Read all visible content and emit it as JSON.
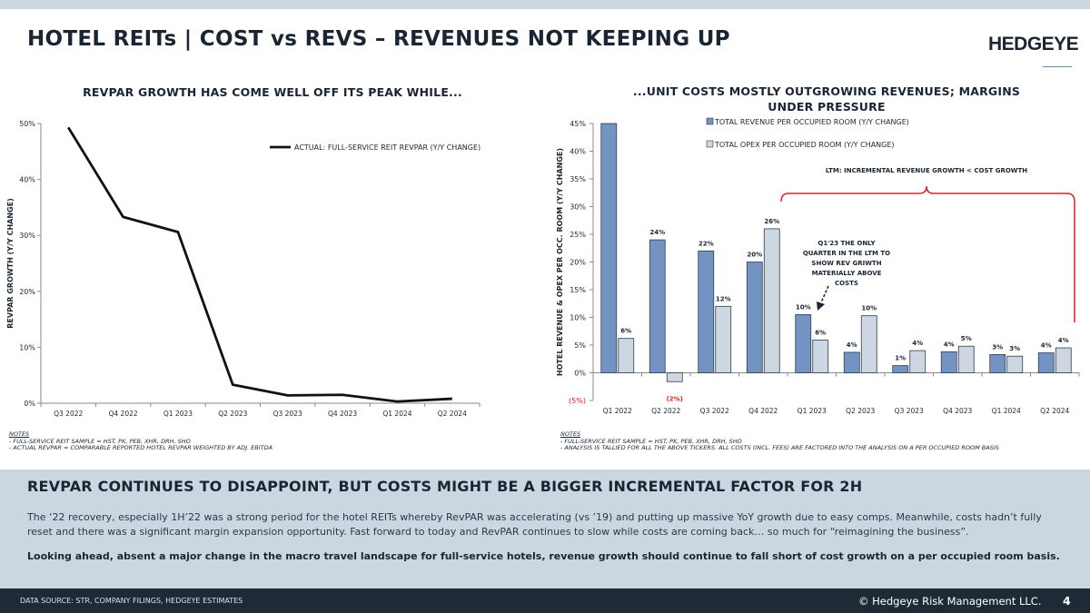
{
  "title": "HOTEL REITs | COST vs REVS – REVENUES NOT KEEPING UP",
  "logo": "HEDGEYE",
  "left_subtitle": "REVPAR GROWTH HAS COME WELL OFF ITS PEAK WHILE...",
  "right_subtitle_line1": "...UNIT COSTS MOSTLY OUTGROWING REVENUES; MARGINS",
  "right_subtitle_line2": "UNDER PRESSURE",
  "left_notes": {
    "heading": "NOTES",
    "line1": "- FULL-SERVICE REIT SAMPLE = HST, PK, PEB, XHR, DRH, SHO",
    "line2": "- ACTUAL REVPAR = COMPARABLE REPORTED HOTEL REVPAR WEIGHTED BY ADJ. EBITDA"
  },
  "right_notes": {
    "heading": "NOTES",
    "line1": "- FULL-SERVICE REIT SAMPLE = HST, PK, PEB, XHR, DRH, SHO",
    "line2": "- ANALYSIS IS TALLIED FOR ALL THE ABOVE TICKERS.  ALL COSTS (INCL. FEES) ARE FACTORED INTO THE ANALYSIS ON A PER OCCUPIED ROOM BASIS"
  },
  "chart_data": [
    {
      "type": "line",
      "ylabel": "REVPAR GROWTH (Y/Y CHANGE)",
      "ylim": [
        0,
        50
      ],
      "y_ticks": [
        "0%",
        "10%",
        "20%",
        "30%",
        "40%",
        "50%"
      ],
      "grid": false,
      "legend": "top-right",
      "categories": [
        "Q3 2022",
        "Q4 2022",
        "Q1 2023",
        "Q2 2023",
        "Q3 2023",
        "Q4 2023",
        "Q1 2024",
        "Q2 2024"
      ],
      "series": [
        {
          "name": "ACTUAL: FULL-SERVICE REIT REVPAR (Y/Y CHANGE)",
          "values": [
            49.3,
            33.3,
            30.6,
            3.3,
            1.4,
            1.5,
            0.3,
            0.8
          ],
          "color": "#111111"
        }
      ]
    },
    {
      "type": "bar",
      "ylabel": "HOTEL REVENUE & OPEX  PER OCC. ROOM (Y/Y CHANGE)",
      "ylim": [
        -5,
        45
      ],
      "y_ticks": [
        "(5%)",
        "0%",
        "5%",
        "10%",
        "15%",
        "20%",
        "25%",
        "30%",
        "35%",
        "40%",
        "45%"
      ],
      "grid": false,
      "legend": "top",
      "categories": [
        "Q1 2022",
        "Q2 2022",
        "Q3 2022",
        "Q4 2022",
        "Q1 2023",
        "Q2 2023",
        "Q3 2023",
        "Q4 2023",
        "Q1 2024",
        "Q2 2024"
      ],
      "series": [
        {
          "name": "TOTAL REVENUE PER OCCUPIED ROOM (Y/Y CHANGE)",
          "values": [
            45,
            24,
            22,
            20,
            10.5,
            3.7,
            1.3,
            3.8,
            3.3,
            3.6
          ],
          "labels": [
            "",
            "24%",
            "22%",
            "20%",
            "10%",
            "4%",
            "1%",
            "4%",
            "3%",
            "4%"
          ],
          "color": "#7394c3"
        },
        {
          "name": "TOTAL OPEX PER OCCUPIED ROOM (Y/Y CHANGE)",
          "values": [
            6.2,
            -1.6,
            12,
            26,
            5.9,
            10.3,
            4,
            4.8,
            3,
            4.5
          ],
          "labels": [
            "6%",
            "(2%)",
            "12%",
            "26%",
            "6%",
            "10%",
            "4%",
            "5%",
            "3%",
            "4%"
          ],
          "color": "#ccd7e2"
        }
      ],
      "annotations": {
        "bracket_label": "LTM: INCREMENTAL REVENUE GROWTH < COST GROWTH",
        "callout": [
          "Q1'23 THE ONLY",
          "QUARTER IN THE LTM TO",
          "SHOW REV GRIWTH",
          "MATERIALLY ABOVE",
          "COSTS"
        ],
        "accent_color": "#e02020"
      }
    }
  ],
  "panel": {
    "heading": "REVPAR CONTINUES TO DISAPPOINT, BUT COSTS MIGHT BE A BIGGER INCREMENTAL FACTOR FOR 2H",
    "paragraph1": "The ‘22 recovery, especially 1H’22 was a strong period for the hotel REITs whereby RevPAR was accelerating (vs ’19) and putting up massive YoY growth due to easy comps. Meanwhile, costs hadn’t fully reset and there was a significant margin expansion opportunity. Fast forward to today and RevPAR continues to slow while costs are coming back…  so much for “reimagining the business”.",
    "paragraph2": "Looking ahead, absent a major change in the macro travel landscape for full-service hotels, revenue growth should continue to fall short of cost growth on a per occupied room basis."
  },
  "footer": {
    "source": "DATA SOURCE: STR, COMPANY FILINGS, HEDGEYE ESTIMATES",
    "copyright": "© Hedgeye Risk Management LLC.",
    "page": "4"
  }
}
